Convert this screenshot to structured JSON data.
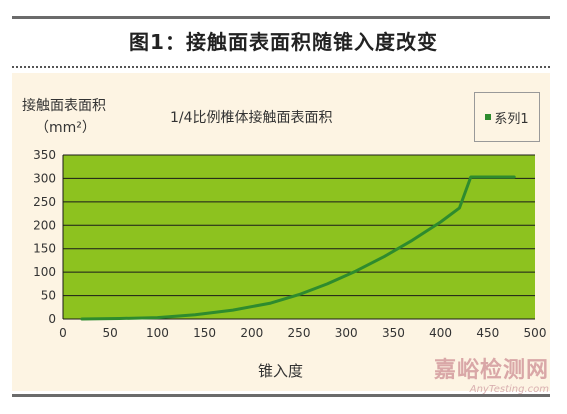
{
  "figure_title": "图1：接触面表面积随锥入度改变",
  "chart_data": {
    "type": "line",
    "title": "1/4比例椎体接触面表面积",
    "ylabel": "接触面表面积",
    "yunit": "（mm²）",
    "xlabel": "锥入度",
    "xlim": [
      0,
      500
    ],
    "ylim": [
      0,
      350
    ],
    "xticks": [
      0,
      50,
      100,
      150,
      200,
      250,
      300,
      350,
      400,
      450,
      500
    ],
    "yticks": [
      0,
      50,
      100,
      150,
      200,
      250,
      300,
      350
    ],
    "grid": "horizontal",
    "legend_position": "top-right",
    "series": [
      {
        "name": "系列1",
        "color": "#2e8b2e",
        "x": [
          20,
          60,
          100,
          140,
          180,
          220,
          250,
          280,
          310,
          340,
          370,
          400,
          420,
          432,
          450,
          478
        ],
        "y": [
          0,
          1,
          3,
          9,
          19,
          34,
          52,
          75,
          102,
          133,
          168,
          207,
          237,
          303,
          303,
          303
        ]
      }
    ]
  },
  "watermark": {
    "main": "嘉峪检测网",
    "sub": "AnyTesting.com"
  },
  "colors": {
    "plot_bg": "#8dc21f",
    "panel_bg": "#fdf4e3",
    "line": "#2e8b2e"
  }
}
